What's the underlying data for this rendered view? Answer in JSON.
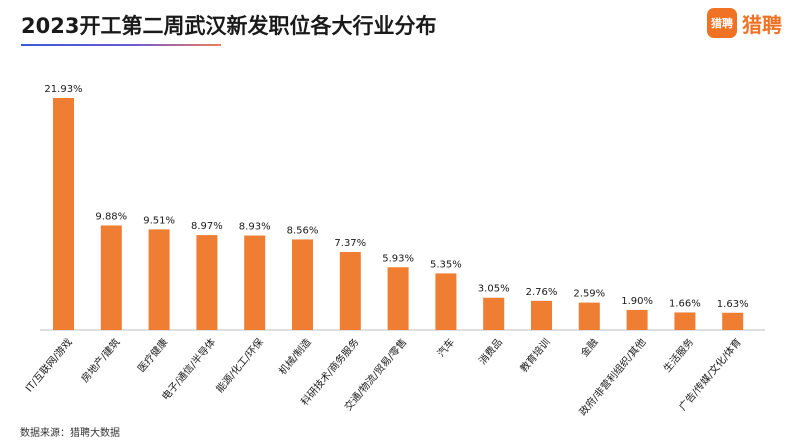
{
  "header": {
    "title": "2023开工第二周武汉新发职位各大行业分布",
    "brand_icon_text": "猎聘",
    "brand_name": "猎聘"
  },
  "colors": {
    "bar": "#ef7d32",
    "brand": "#f07325",
    "axis": "#bfbfbf"
  },
  "footer": {
    "source": "数据来源：猎聘大数据"
  },
  "chart_data": {
    "type": "bar",
    "title": "2023开工第二周武汉新发职位各大行业分布",
    "categories": [
      "IT/互联网/游戏",
      "房地产/建筑",
      "医疗健康",
      "电子/通信/半导体",
      "能源/化工/环保",
      "机械/制造",
      "科研技术/商务服务",
      "交通/物流/贸易/零售",
      "汽车",
      "消费品",
      "教育培训",
      "金融",
      "政府/非营利组织/其他",
      "生活服务",
      "广告/传媒/文化/体育"
    ],
    "values": [
      21.93,
      9.88,
      9.51,
      8.97,
      8.93,
      8.56,
      7.37,
      5.93,
      5.35,
      3.05,
      2.76,
      2.59,
      1.9,
      1.66,
      1.63
    ],
    "labels": [
      "21.93%",
      "9.88%",
      "9.51%",
      "8.97%",
      "8.93%",
      "8.56%",
      "7.37%",
      "5.93%",
      "5.35%",
      "3.05%",
      "2.76%",
      "2.59%",
      "1.90%",
      "1.66%",
      "1.63%"
    ],
    "unit": "%",
    "ylim": [
      0,
      22
    ],
    "grid": false,
    "legend": "none"
  }
}
